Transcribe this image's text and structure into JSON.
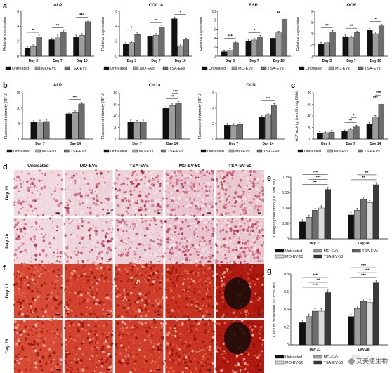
{
  "panels": {
    "a": "a",
    "b": "b",
    "c": "c",
    "d": "d",
    "e": "e",
    "f": "f",
    "g": "g"
  },
  "colors": {
    "untreated": "#111111",
    "mo_evs": "#9e9e9e",
    "tsa_evs": "#6d6d6d",
    "mo_ev_50": "#dcdcdc",
    "tsa_ev_50": "#3a3a3a",
    "sirius_red": "#c0485d",
    "alizarin": "#c62a1c"
  },
  "legend3": [
    "Untreated",
    "MO-EVs",
    "TSA-EVs"
  ],
  "legend5": [
    "Untreated",
    "MO-EVs",
    "TSA-EVs",
    "MO-EV-50",
    "TSA-EV-50"
  ],
  "micro_cols": [
    "Untreated",
    "MO-EVs",
    "TSA-EVs",
    "MO-EV-50",
    "TSA-EV-50"
  ],
  "micro_rows": [
    "Day 21",
    "Day 28"
  ],
  "watermark": "艾美捷生物",
  "chart_data": [
    {
      "id": "a-alp",
      "type": "bar",
      "title": "ALP",
      "ylabel": "Relative expression",
      "categories": [
        "Day 3",
        "Day 7",
        "Day 10"
      ],
      "ylim": [
        0,
        6
      ],
      "yticks": [
        0,
        2,
        4,
        6
      ],
      "series": [
        {
          "name": "Untreated",
          "values": [
            1.1,
            2.2,
            2.6
          ]
        },
        {
          "name": "MO-EVs",
          "values": [
            1.3,
            2.6,
            2.8
          ]
        },
        {
          "name": "TSA-EVs",
          "values": [
            2.6,
            3.2,
            4.6
          ]
        }
      ],
      "sig": [
        {
          "cat": 0,
          "label": "**"
        },
        {
          "cat": 1,
          "label": "**"
        },
        {
          "cat": 2,
          "label": "***"
        }
      ]
    },
    {
      "id": "a-col1a",
      "type": "bar",
      "title": "COL1A",
      "ylabel": "Relative expression",
      "categories": [
        "Day 3",
        "Day 7",
        "Day 10"
      ],
      "ylim": [
        0,
        6
      ],
      "yticks": [
        0,
        2,
        4,
        6
      ],
      "series": [
        {
          "name": "Untreated",
          "values": [
            1.6,
            2.7,
            5.0
          ]
        },
        {
          "name": "MO-EVs",
          "values": [
            1.8,
            2.8,
            1.4
          ]
        },
        {
          "name": "TSA-EVs",
          "values": [
            2.9,
            3.9,
            2.2
          ]
        }
      ],
      "sig": [
        {
          "cat": 0,
          "label": "*"
        },
        {
          "cat": 1,
          "label": "**"
        },
        {
          "cat": 2,
          "label": "*"
        }
      ]
    },
    {
      "id": "a-bsp1",
      "type": "bar",
      "title": "BSP1",
      "ylabel": "Relative expression",
      "categories": [
        "Day 3",
        "Day 7",
        "Day 10"
      ],
      "ylim": [
        0,
        10
      ],
      "yticks": [
        0,
        2,
        4,
        6,
        8,
        10
      ],
      "series": [
        {
          "name": "Untreated",
          "values": [
            1.0,
            3.4,
            4.0
          ]
        },
        {
          "name": "MO-EVs",
          "values": [
            1.3,
            3.6,
            5.2
          ]
        },
        {
          "name": "TSA-EVs",
          "values": [
            3.0,
            4.3,
            8.2
          ]
        }
      ],
      "sig": [
        {
          "cat": 0,
          "label": "***"
        },
        {
          "cat": 1,
          "label": "*"
        },
        {
          "cat": 2,
          "label": "**"
        }
      ]
    },
    {
      "id": "a-ocn",
      "type": "bar",
      "title": "OCN",
      "ylabel": "Relative expression",
      "categories": [
        "Day 3",
        "Day 7",
        "Day 10"
      ],
      "ylim": [
        0,
        8
      ],
      "yticks": [
        0,
        2,
        4,
        6,
        8
      ],
      "series": [
        {
          "name": "Untreated",
          "values": [
            2.2,
            3.5,
            4.7
          ]
        },
        {
          "name": "MO-EVs",
          "values": [
            2.4,
            3.3,
            4.0
          ]
        },
        {
          "name": "TSA-EVs",
          "values": [
            4.3,
            4.2,
            5.4
          ]
        }
      ],
      "sig": [
        {
          "cat": 0,
          "label": "**"
        },
        {
          "cat": 1,
          "label": "**"
        },
        {
          "cat": 2,
          "label": "*"
        }
      ]
    },
    {
      "id": "b-alp",
      "type": "bar",
      "title": "ALP",
      "ylabel": "Fluorescent intensity (RFU)",
      "categories": [
        "Day 7",
        "Day 14"
      ],
      "ylim": [
        0,
        15
      ],
      "yticks": [
        0,
        5,
        10,
        15
      ],
      "series": [
        {
          "name": "Untreated",
          "values": [
            5.4,
            8.2
          ]
        },
        {
          "name": "MO-EVs",
          "values": [
            5.6,
            8.6
          ]
        },
        {
          "name": "TSA-EVs",
          "values": [
            5.7,
            11.4
          ]
        }
      ],
      "sig": [
        {
          "cat": 1,
          "label": "***"
        }
      ]
    },
    {
      "id": "b-col1a",
      "type": "bar",
      "title": "Col1a",
      "ylabel": "Fluorescent intensity (RFU)",
      "categories": [
        "Day 7",
        "Day 14"
      ],
      "ylim": [
        0,
        80
      ],
      "yticks": [
        0,
        20,
        40,
        60,
        80
      ],
      "series": [
        {
          "name": "Untreated",
          "values": [
            30,
            53
          ]
        },
        {
          "name": "MO-EVs",
          "values": [
            29,
            58
          ]
        },
        {
          "name": "TSA-EVs",
          "values": [
            30,
            62
          ]
        }
      ],
      "sig": [
        {
          "cat": 1,
          "label": "**"
        },
        {
          "cat": 1,
          "label": "***"
        }
      ]
    },
    {
      "id": "b-ocn",
      "type": "bar",
      "title": "OCN",
      "ylabel": "Fluorescent intensity (RFU)",
      "categories": [
        "Day 7",
        "Day 14"
      ],
      "ylim": [
        0,
        6
      ],
      "yticks": [
        0,
        2,
        4,
        6
      ],
      "series": [
        {
          "name": "Untreated",
          "values": [
            1.8,
            2.8
          ]
        },
        {
          "name": "MO-EVs",
          "values": [
            1.8,
            3.1
          ]
        },
        {
          "name": "TSA-EVs",
          "values": [
            1.9,
            4.4
          ]
        }
      ],
      "sig": [
        {
          "cat": 1,
          "label": "***"
        }
      ]
    },
    {
      "id": "c-alp",
      "type": "bar",
      "title": "",
      "ylabel": "ALP activity (nmol/hr/ng DNA)",
      "categories": [
        "Day 3",
        "Day 7",
        "Day 14"
      ],
      "ylim": [
        0,
        80
      ],
      "yticks": [
        0,
        20,
        40,
        60,
        80
      ],
      "series": [
        {
          "name": "Untreated",
          "values": [
            10,
            13,
            26
          ]
        },
        {
          "name": "MO-EVs",
          "values": [
            11,
            16,
            38
          ]
        },
        {
          "name": "TSA-EVs",
          "values": [
            12,
            21,
            60
          ]
        }
      ],
      "sig": [
        {
          "cat": 1,
          "label": "**"
        },
        {
          "cat": 1,
          "label": "*"
        },
        {
          "cat": 2,
          "label": "***"
        },
        {
          "cat": 2,
          "label": "***"
        }
      ]
    },
    {
      "id": "e-collagen",
      "type": "bar",
      "title": "",
      "ylabel": "Collagen production (OD 590 nm)",
      "categories": [
        "Day 21",
        "Day 28"
      ],
      "ylim": [
        0,
        0.08
      ],
      "yticks": [
        0,
        0.02,
        0.04,
        0.06,
        0.08
      ],
      "series": [
        {
          "name": "Untreated",
          "values": [
            0.022,
            0.031
          ]
        },
        {
          "name": "MO-EVs",
          "values": [
            0.028,
            0.037
          ]
        },
        {
          "name": "TSA-EVs",
          "values": [
            0.037,
            0.051
          ]
        },
        {
          "name": "MO-EV-50",
          "values": [
            0.04,
            0.047
          ]
        },
        {
          "name": "TSA-EV-50",
          "values": [
            0.064,
            0.07
          ]
        }
      ],
      "sig": [
        {
          "cat": 0,
          "label": "**"
        },
        {
          "cat": 0,
          "label": "***"
        },
        {
          "cat": 0,
          "label": "***"
        },
        {
          "cat": 1,
          "label": "**"
        },
        {
          "cat": 1,
          "label": "**"
        },
        {
          "cat": 1,
          "label": "***"
        }
      ]
    },
    {
      "id": "g-calcium",
      "type": "bar",
      "title": "",
      "ylabel": "Calcium deposition (OD 550 nm)",
      "categories": [
        "Day 21",
        "Day 28"
      ],
      "ylim": [
        0,
        0.8
      ],
      "yticks": [
        0,
        0.2,
        0.4,
        0.6,
        0.8
      ],
      "series": [
        {
          "name": "Untreated",
          "values": [
            0.25,
            0.32
          ]
        },
        {
          "name": "MO-EVs",
          "values": [
            0.32,
            0.41
          ]
        },
        {
          "name": "TSA-EVs",
          "values": [
            0.38,
            0.49
          ]
        },
        {
          "name": "MO-EV-50",
          "values": [
            0.38,
            0.48
          ]
        },
        {
          "name": "TSA-EV-50",
          "values": [
            0.59,
            0.7
          ]
        }
      ],
      "sig": [
        {
          "cat": 0,
          "label": "***"
        },
        {
          "cat": 0,
          "label": "**"
        },
        {
          "cat": 0,
          "label": "***"
        },
        {
          "cat": 1,
          "label": "***"
        },
        {
          "cat": 1,
          "label": "***"
        },
        {
          "cat": 1,
          "label": "***"
        }
      ]
    }
  ]
}
